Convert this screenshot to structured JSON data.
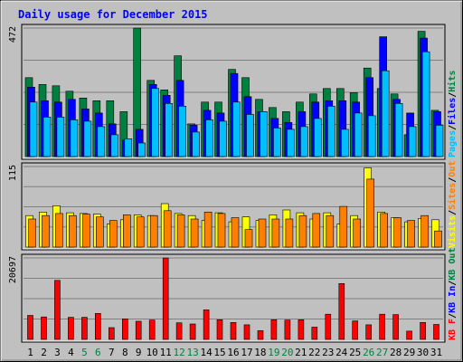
{
  "chart_data": {
    "type": "bar",
    "title": "Daily usage for December 2015",
    "categories": [
      "1",
      "2",
      "3",
      "4",
      "5",
      "6",
      "7",
      "8",
      "9",
      "10",
      "11",
      "12",
      "13",
      "14",
      "15",
      "16",
      "17",
      "18",
      "19",
      "20",
      "21",
      "22",
      "23",
      "24",
      "25",
      "26",
      "27",
      "28",
      "29",
      "30",
      "31"
    ],
    "weekend_days": [
      "5",
      "6",
      "12",
      "13",
      "19",
      "20",
      "26",
      "27"
    ],
    "panels": [
      {
        "id": "hits-files-pages",
        "max_label": "472",
        "ylim": [
          0,
          472
        ],
        "legend": [
          "Pages",
          "Files",
          "Hits"
        ],
        "series": [
          {
            "name": "Hits",
            "color": "#008040",
            "values": [
              290,
              265,
              260,
              240,
              215,
              205,
              205,
              165,
              472,
              280,
              245,
              370,
              120,
              200,
              200,
              320,
              290,
              210,
              180,
              165,
              200,
              230,
              250,
              250,
              235,
              325,
              250,
              230,
              80,
              460,
              170
            ]
          },
          {
            "name": "Files",
            "color": "#0000ff",
            "values": [
              255,
              205,
              200,
              210,
              175,
              160,
              120,
              60,
              100,
              265,
              225,
              280,
              115,
              170,
              160,
              305,
              220,
              165,
              140,
              125,
              165,
              200,
              205,
              205,
              200,
              290,
              440,
              210,
              160,
              435,
              165
            ]
          },
          {
            "name": "Pages",
            "color": "#00bfff",
            "values": [
              200,
              145,
              145,
              135,
              130,
              110,
              80,
              65,
              50,
              250,
              195,
              185,
              90,
              135,
              130,
              200,
              155,
              165,
              105,
              100,
              110,
              140,
              185,
              100,
              160,
              150,
              315,
              195,
              110,
              385,
              115
            ]
          }
        ]
      },
      {
        "id": "visits-sites",
        "max_label": "115",
        "ylim": [
          0,
          115
        ],
        "legend": [
          "Visits",
          "Sites",
          "Out"
        ],
        "series": [
          {
            "name": "Visits",
            "color": "#ffff00",
            "values": [
              45,
              50,
              59,
              49,
              48,
              47,
              33,
              39,
              46,
              45,
              62,
              48,
              45,
              38,
              49,
              36,
              43,
              38,
              46,
              53,
              49,
              40,
              49,
              33,
              45,
              113,
              50,
              42,
              36,
              41,
              39
            ]
          },
          {
            "name": "Sites",
            "color": "#ff8000",
            "values": [
              40,
              45,
              48,
              45,
              47,
              43,
              38,
              46,
              43,
              45,
              52,
              46,
              40,
              50,
              48,
              42,
              25,
              40,
              40,
              40,
              45,
              48,
              45,
              58,
              40,
              97,
              48,
              42,
              38,
              45,
              23
            ]
          }
        ]
      },
      {
        "id": "kbytes",
        "max_label": "20697",
        "ylim": [
          0,
          20697
        ],
        "legend": [
          "KB F",
          "KB In",
          "KB Out"
        ],
        "series": [
          {
            "name": "KBytes",
            "color": "#ff0000",
            "values": [
              6100,
              5700,
              15000,
              5600,
              5600,
              6600,
              3000,
              5200,
              4600,
              4900,
              20697,
              4200,
              3900,
              7500,
              5000,
              4300,
              3700,
              2200,
              5000,
              4900,
              5000,
              3100,
              6400,
              14200,
              4700,
              3700,
              6400,
              6300,
              2100,
              4300,
              3800
            ]
          }
        ]
      }
    ]
  }
}
